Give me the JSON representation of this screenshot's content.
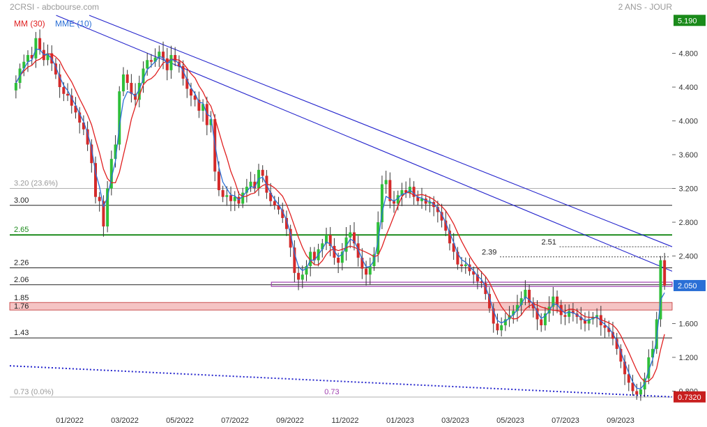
{
  "header": {
    "title": "2CRSI - abcbourse.com",
    "period": "2 ANS - JOUR",
    "legend": [
      {
        "label": "MM (30)",
        "color": "#e02020"
      },
      {
        "label": "MME (10)",
        "color": "#2a6fd6"
      }
    ]
  },
  "colors": {
    "up": "#2fbf3a",
    "down": "#d42a2a",
    "mm30": "#e02020",
    "mme10": "#2a6fd6",
    "trend": "#2222cc",
    "level_green": "#1a8a1a",
    "fib_gray": "#999999",
    "purple": "#a040b0",
    "band_red": "#f5c4c4",
    "price_badge_green": "#1a8a1a",
    "price_badge_blue": "#2a6fd6",
    "price_badge_red": "#c81e1e"
  },
  "chart_data": {
    "type": "candlestick",
    "instrument": "2CRSI",
    "ylim": [
      0.73,
      5.25
    ],
    "y_ticks": [
      "5.190",
      "4.800",
      "4.400",
      "4.000",
      "3.600",
      "3.200",
      "2.800",
      "2.400",
      "2.050",
      "1.600",
      "1.200",
      "0.800",
      "0.7320"
    ],
    "x_ticks": [
      "01/2022",
      "03/2022",
      "05/2022",
      "07/2022",
      "09/2022",
      "11/2022",
      "01/2023",
      "03/2023",
      "05/2023",
      "07/2023",
      "09/2023"
    ],
    "price_badges": [
      {
        "label": "5.190",
        "value": 5.19,
        "style": "green"
      },
      {
        "label": "2.050",
        "value": 2.05,
        "style": "blue"
      },
      {
        "label": "0.7320",
        "value": 0.732,
        "style": "red"
      }
    ],
    "horizontal_levels": [
      {
        "label": "3.20  (23.6%)",
        "value": 3.2,
        "style": "fib"
      },
      {
        "label": "3.00",
        "value": 3.0,
        "style": "black"
      },
      {
        "label": "2.65",
        "value": 2.65,
        "style": "green"
      },
      {
        "label": "2.26",
        "value": 2.26,
        "style": "black"
      },
      {
        "label": "2.06",
        "value": 2.06,
        "style": "black"
      },
      {
        "label": "1.43",
        "value": 1.43,
        "style": "black"
      },
      {
        "label": "0.73  (0.0%)",
        "value": 0.73,
        "style": "fib"
      }
    ],
    "band": {
      "labels": [
        "1.85",
        "1.76"
      ],
      "low": 1.76,
      "high": 1.85
    },
    "purple_zone": {
      "low": 2.04,
      "high": 2.09,
      "x_start": 0.395,
      "x_end": 1.0
    },
    "dotted_levels": [
      {
        "label": "2.51",
        "value": 2.51,
        "x_start": 0.83
      },
      {
        "label": "2.39",
        "value": 2.39,
        "x_start": 0.74
      }
    ],
    "trendlines": [
      {
        "points": [
          [
            0.12,
            5.25
          ],
          [
            1.0,
            2.51
          ]
        ],
        "style": "solid"
      },
      {
        "points": [
          [
            0.07,
            5.25
          ],
          [
            1.0,
            2.22
          ]
        ],
        "style": "solid"
      },
      {
        "points": [
          [
            0.0,
            1.1
          ],
          [
            1.0,
            0.732
          ]
        ],
        "style": "dotted"
      }
    ],
    "annotations": [
      {
        "label": "0.73",
        "x": 0.475,
        "y": 0.73
      }
    ],
    "series_close": [
      4.45,
      4.62,
      4.7,
      4.78,
      4.74,
      4.98,
      4.84,
      4.72,
      4.8,
      4.68,
      4.55,
      4.4,
      4.32,
      4.3,
      4.18,
      4.1,
      3.98,
      3.9,
      3.72,
      3.5,
      3.1,
      3.05,
      2.75,
      3.2,
      3.55,
      3.72,
      4.35,
      4.55,
      4.45,
      4.32,
      4.25,
      4.45,
      4.62,
      4.72,
      4.7,
      4.75,
      4.82,
      4.74,
      4.6,
      4.78,
      4.7,
      4.65,
      4.5,
      4.38,
      4.3,
      4.25,
      4.12,
      4.2,
      3.95,
      4.02,
      3.4,
      3.18,
      3.1,
      3.12,
      3.05,
      3.1,
      3.02,
      3.15,
      3.22,
      3.28,
      3.2,
      3.42,
      3.35,
      3.15,
      3.05,
      3.0,
      2.95,
      2.85,
      2.72,
      2.5,
      2.2,
      2.12,
      2.18,
      2.28,
      2.45,
      2.35,
      2.48,
      2.55,
      2.65,
      2.52,
      2.38,
      2.32,
      2.45,
      2.62,
      2.68,
      2.55,
      2.38,
      2.25,
      2.18,
      2.28,
      2.42,
      2.8,
      3.25,
      3.3,
      3.05,
      3.02,
      3.12,
      3.18,
      3.15,
      3.22,
      3.1,
      3.05,
      3.08,
      3.02,
      3.04,
      2.98,
      2.92,
      2.82,
      2.7,
      2.55,
      2.45,
      2.3,
      2.28,
      2.3,
      2.22,
      2.18,
      2.1,
      2.08,
      1.95,
      1.78,
      1.6,
      1.52,
      1.58,
      1.65,
      1.7,
      1.75,
      1.82,
      1.9,
      2.0,
      1.85,
      1.78,
      1.65,
      1.58,
      1.72,
      1.8,
      1.92,
      1.82,
      1.7,
      1.68,
      1.75,
      1.72,
      1.68,
      1.64,
      1.6,
      1.65,
      1.68,
      1.7,
      1.58,
      1.55,
      1.5,
      1.42,
      1.3,
      1.15,
      1.0,
      0.9,
      0.8,
      0.76,
      0.82,
      0.95,
      1.2,
      1.3,
      1.65,
      2.35,
      2.05
    ]
  }
}
